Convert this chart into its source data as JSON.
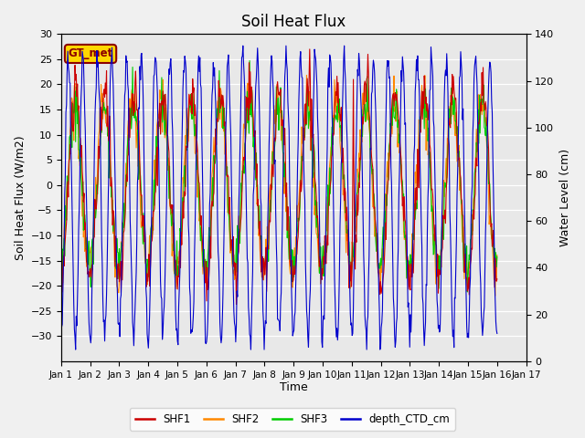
{
  "title": "Soil Heat Flux",
  "xlabel": "Time",
  "ylabel_left": "Soil Heat Flux (W/m2)",
  "ylabel_right": "Water Level (cm)",
  "ylim_left": [
    -35,
    30
  ],
  "ylim_right": [
    0,
    140
  ],
  "yticks_left": [
    -30,
    -25,
    -20,
    -15,
    -10,
    -5,
    0,
    5,
    10,
    15,
    20,
    25,
    30
  ],
  "yticks_right": [
    0,
    20,
    40,
    60,
    80,
    100,
    120,
    140
  ],
  "annotation_text": "GT_met",
  "annotation_color": "#8B0000",
  "annotation_bg": "#FFD700",
  "plot_bg_color": "#E8E8E8",
  "fig_bg_color": "#F0F0F0",
  "colors": {
    "SHF1": "#CC0000",
    "SHF2": "#FF8800",
    "SHF3": "#00CC00",
    "depth_CTD_cm": "#0000CC"
  },
  "days": 15,
  "n_points": 720
}
